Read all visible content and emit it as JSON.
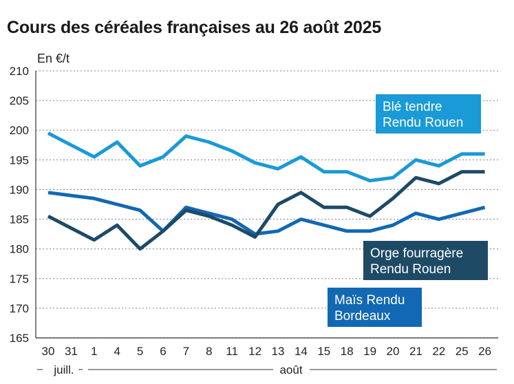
{
  "title": "Cours des céréales françaises au 26 août 2025",
  "chart_data": {
    "type": "line",
    "title": "Cours des céréales françaises au 26 août 2025",
    "ylabel": "En €/t",
    "ylim": [
      165,
      210
    ],
    "yticks": [
      "210",
      "205",
      "200",
      "195",
      "190",
      "185",
      "180",
      "175",
      "170",
      "165"
    ],
    "categories": [
      "30",
      "31",
      "1",
      "4",
      "5",
      "6",
      "7",
      "8",
      "11",
      "12",
      "13",
      "14",
      "15",
      "18",
      "19",
      "20",
      "21",
      "22",
      "25",
      "26"
    ],
    "month_labels": {
      "july": "juill.",
      "august": "août"
    },
    "grid": true,
    "series": [
      {
        "name": "Blé tendre Rendu Rouen",
        "label_lines": [
          "Blé tendre",
          "Rendu Rouen"
        ],
        "color": "#1a9ad6",
        "values": [
          199.5,
          197.5,
          195.5,
          198,
          194,
          195.5,
          199,
          198,
          196.5,
          194.5,
          193.5,
          195.5,
          193,
          193,
          191.5,
          192,
          195,
          194,
          196,
          196
        ]
      },
      {
        "name": "Orge fourragère Rendu Rouen",
        "label_lines": [
          "Orge fourragère",
          "Rendu Rouen"
        ],
        "color": "#1e4a66",
        "values": [
          185.5,
          183.5,
          181.5,
          184,
          180,
          183,
          186.5,
          185.5,
          184,
          182,
          187.5,
          189.5,
          187,
          187,
          185.5,
          188.5,
          192,
          191,
          193,
          193
        ]
      },
      {
        "name": "Maïs Rendu Bordeaux",
        "label_lines": [
          "Maïs Rendu",
          "Bordeaux"
        ],
        "color": "#1268b3",
        "values": [
          189.5,
          189,
          188.5,
          187.5,
          186.5,
          183,
          187,
          186,
          185,
          182.5,
          183,
          185,
          184,
          183,
          183,
          184,
          186,
          185,
          186,
          187
        ]
      }
    ]
  }
}
